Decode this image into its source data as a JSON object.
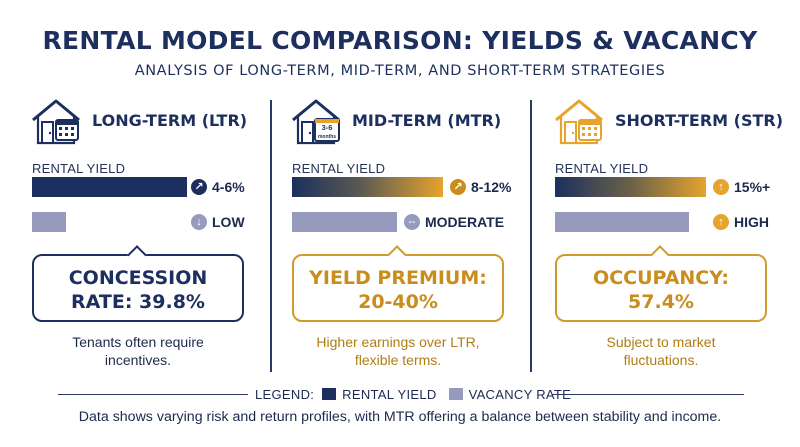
{
  "title": "RENTAL MODEL COMPARISON: YIELDS & VACANCY",
  "subtitle": "ANALYSIS OF LONG-TERM, MID-TERM, AND SHORT-TERM STRATEGIES",
  "columns": [
    {
      "name": "LONG-TERM (LTR)",
      "icon": "house-calendar-icon",
      "yield_label": "RENTAL YIELD",
      "rental_yield": "4-6%",
      "rental_yield_icon": "arrow-up-right-icon",
      "rental_yield_bar_fraction": 0.59,
      "vacancy": "LOW",
      "vacancy_icon": "arrow-down-icon",
      "vacancy_bar_fraction": 0.13,
      "callout_line1": "CONCESSION",
      "callout_line2": "RATE: 39.8%",
      "description": "Tenants often require incentives."
    },
    {
      "name": "MID-TERM (MTR)",
      "icon": "house-calendar-icon",
      "house_badge": "3-6 months",
      "yield_label": "RENTAL YIELD",
      "rental_yield": "8-12%",
      "rental_yield_icon": "arrow-up-right-icon",
      "rental_yield_bar_fraction": 0.61,
      "vacancy": "MODERATE",
      "vacancy_icon": "arrows-horizontal-icon",
      "vacancy_bar_fraction": 0.43,
      "callout_line1": "YIELD PREMIUM:",
      "callout_line2": "20-40%",
      "description": "Higher earnings over LTR, flexible terms."
    },
    {
      "name": "SHORT-TERM (STR)",
      "icon": "house-calendar-icon",
      "yield_label": "RENTAL YIELD",
      "rental_yield": "15%+",
      "rental_yield_icon": "arrow-up-icon",
      "rental_yield_bar_fraction": 0.62,
      "vacancy": "HIGH",
      "vacancy_icon": "arrow-up-icon",
      "vacancy_bar_fraction": 0.55,
      "callout_line1": "OCCUPANCY:",
      "callout_line2": "57.4%",
      "description": "Subject to market fluctuations."
    }
  ],
  "legend": {
    "title": "LEGEND:",
    "rental_label": "RENTAL YIELD",
    "vacancy_label": "VACANCY RATE"
  },
  "footer": "Data shows varying risk and return profiles, with MTR offering a balance between stability and income.",
  "colors": {
    "navy": "#1c2f5e",
    "gold": "#e6a32e",
    "vacancy": "#969bbd"
  }
}
